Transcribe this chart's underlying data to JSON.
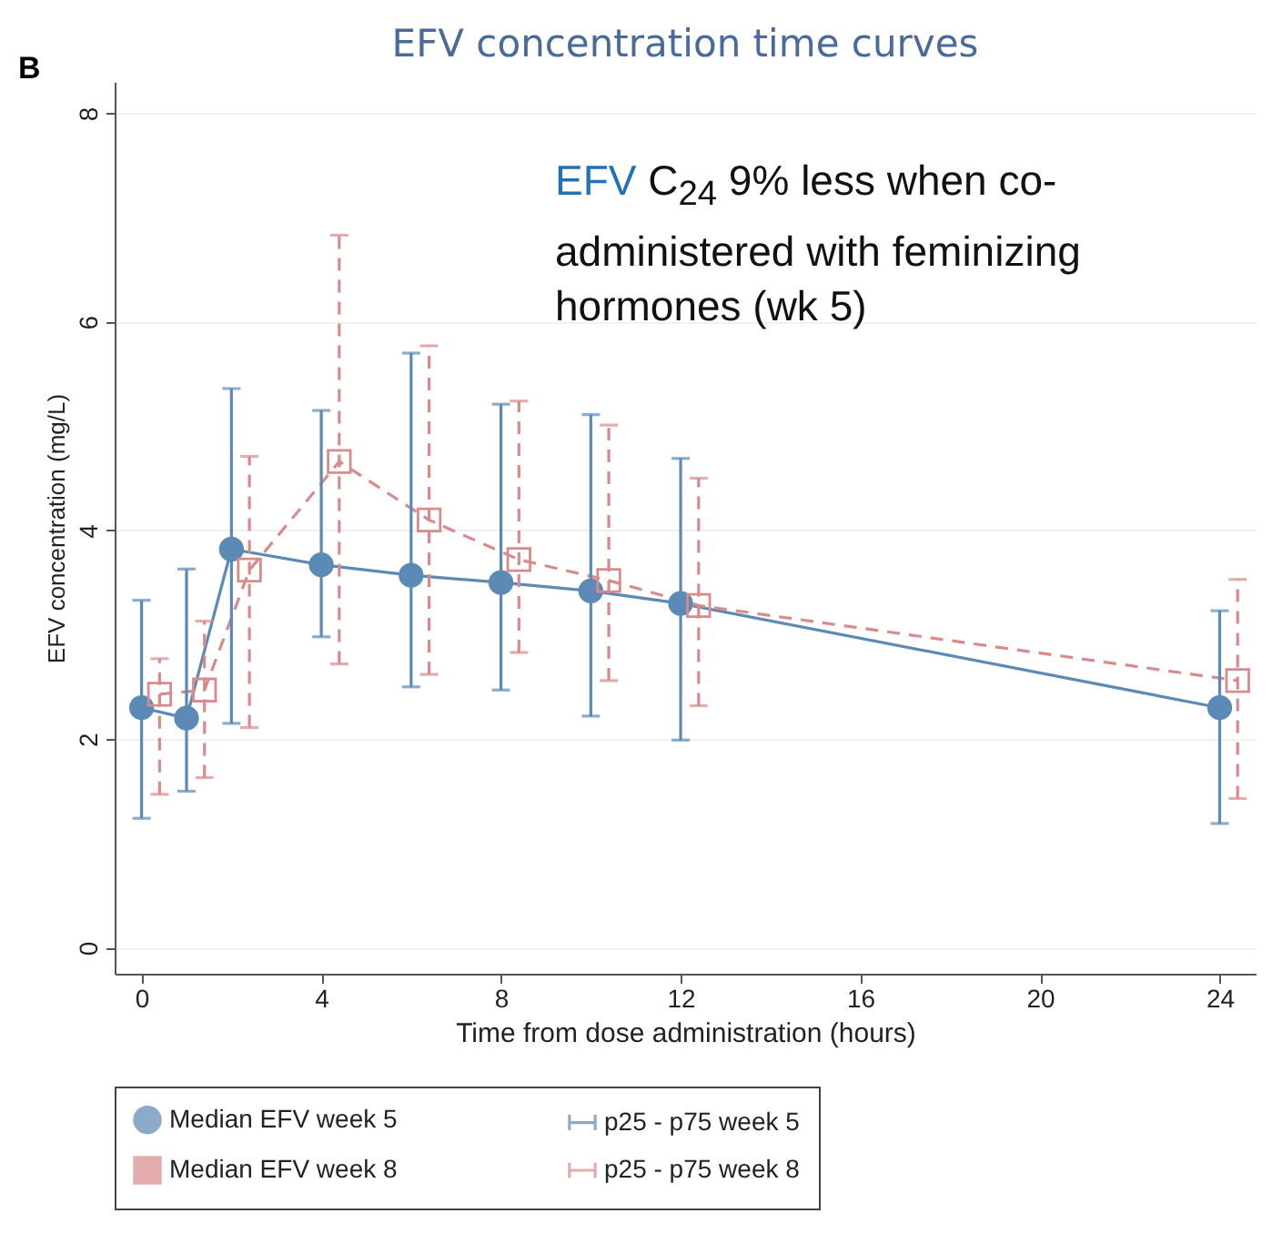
{
  "chart_data": {
    "type": "line",
    "title": "EFV concentration time curves",
    "xlabel": "Time from dose administration (hours)",
    "ylabel": "EFV concentration (mg/L)",
    "xlim": [
      -0.6,
      24.8
    ],
    "xticks": [
      0,
      4,
      8,
      12,
      16,
      20,
      24
    ],
    "ylim": [
      -0.25,
      8.3
    ],
    "yticks": [
      {
        "value": 0,
        "label": "0"
      },
      {
        "value": 2,
        "label": "2"
      },
      {
        "value": 4,
        "label": "4"
      },
      {
        "value": 6,
        "label": "6"
      },
      {
        "value": 8,
        "label": "8"
      }
    ],
    "grid": "y",
    "legend": "bottom",
    "annotations": [
      "B",
      "EFV C$_{24}$ 9% less when co-administered with feminizing hormones (wk 5)",
      "p25 - p75 week 5",
      "p25 - p75 week 8"
    ],
    "series": [
      {
        "name": "Median EFV week 5",
        "color": "#5a8ab5",
        "marker": "circle",
        "line_style": "solid",
        "x": [
          0,
          1,
          2,
          4,
          6,
          8,
          10,
          12,
          24
        ],
        "values": [
          2.3,
          2.2,
          3.82,
          3.67,
          3.57,
          3.5,
          3.42,
          3.3,
          2.3
        ],
        "errors": [
          [
            1.24,
            3.33
          ],
          [
            1.5,
            3.63
          ],
          [
            2.15,
            5.36
          ],
          [
            2.98,
            5.15
          ],
          [
            2.5,
            5.7
          ],
          [
            2.47,
            5.21
          ],
          [
            2.22,
            5.11
          ],
          [
            1.99,
            4.69
          ],
          [
            1.19,
            3.23
          ]
        ]
      },
      {
        "name": "Median EFV week 8",
        "color": "#d98a8a",
        "marker": "square",
        "line_style": "dashed",
        "x": [
          0.4,
          1.4,
          2.4,
          4.4,
          6.4,
          8.4,
          10.4,
          12.4,
          24.4
        ],
        "values": [
          2.43,
          2.47,
          3.62,
          4.66,
          4.1,
          3.72,
          3.52,
          3.28,
          2.56
        ],
        "errors": [
          [
            1.47,
            2.77
          ],
          [
            1.63,
            3.13
          ],
          [
            2.11,
            4.71
          ],
          [
            2.72,
            6.83
          ],
          [
            2.62,
            5.77
          ],
          [
            2.83,
            5.24
          ],
          [
            2.56,
            5.01
          ],
          [
            2.32,
            4.5
          ],
          [
            1.43,
            3.53
          ]
        ]
      }
    ]
  }
}
